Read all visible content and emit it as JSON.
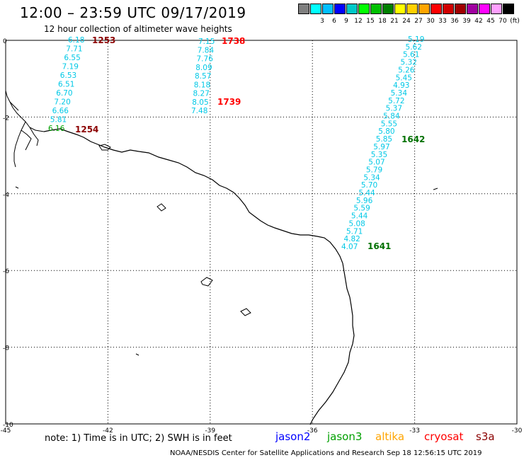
{
  "header": {
    "title": "12:00 – 23:59 UTC 09/17/2019",
    "subtitle": "12 hour collection of altimeter wave heights"
  },
  "legend": {
    "swatches": [
      {
        "color": "#7f7f7f",
        "label": ""
      },
      {
        "color": "#00ffff",
        "label": "3"
      },
      {
        "color": "#00bfff",
        "label": "6"
      },
      {
        "color": "#0000ff",
        "label": "9"
      },
      {
        "color": "#00c8c8",
        "label": "12"
      },
      {
        "color": "#00ff00",
        "label": "15"
      },
      {
        "color": "#00c000",
        "label": "18"
      },
      {
        "color": "#008000",
        "label": "21"
      },
      {
        "color": "#ffff00",
        "label": "24"
      },
      {
        "color": "#ffd000",
        "label": "27"
      },
      {
        "color": "#ffa500",
        "label": "30"
      },
      {
        "color": "#ff0000",
        "label": "33"
      },
      {
        "color": "#d00000",
        "label": "36"
      },
      {
        "color": "#a00000",
        "label": "39"
      },
      {
        "color": "#a000a0",
        "label": "42"
      },
      {
        "color": "#ff00ff",
        "label": "45"
      },
      {
        "color": "#ffa0ff",
        "label": "70"
      },
      {
        "color": "#000000",
        "label": "(ft)"
      }
    ]
  },
  "axes": {
    "x_ticks": [
      "-45",
      "-42",
      "-39",
      "-36",
      "-33",
      "-30"
    ],
    "y_ticks": [
      "0",
      "-2",
      "-4",
      "-6",
      "-8",
      "-10"
    ],
    "grid": true
  },
  "colors": {
    "cyan": "#00c8e6",
    "green_text": "#00a000",
    "dark_green": "#007000",
    "dark_red": "#8b0000",
    "red": "#ff0000",
    "coast": "#000000"
  },
  "tracks": [
    {
      "name": "track-1253",
      "time": "1253",
      "time_color": "#8b0000",
      "values": [
        "6.18",
        "7.71",
        "6.55",
        "7.19",
        "6.53",
        "6.51",
        "6.70",
        "7.20",
        "6.66",
        "5.81",
        "6.16"
      ],
      "time2": "1254",
      "time2_color": "#8b0000"
    },
    {
      "name": "track-1738",
      "time": "1738",
      "time_color": "#ff0000",
      "values": [
        "7.15",
        "7.84",
        "7.76",
        "8.09",
        "8.57",
        "8.18",
        "8.27",
        "8.05",
        "7.48"
      ],
      "time2": "1739",
      "time2_color": "#ff0000"
    },
    {
      "name": "track-1641",
      "time": "1642",
      "time_color": "#007000",
      "values": [
        "5.19",
        "5.62",
        "5.61",
        "5.32",
        "5.26",
        "5.45",
        "4.93",
        "5.34",
        "5.72",
        "5.37",
        "5.84",
        "5.55",
        "5.80",
        "5.85",
        "5.97",
        "5.35",
        "5.07",
        "5.79",
        "5.34",
        "5.70",
        "5.44",
        "5.96",
        "5.59",
        "5.44",
        "5.08",
        "5.71",
        "4.82",
        "4.07"
      ],
      "time2": "1641",
      "time2_color": "#007000"
    }
  ],
  "footer": {
    "note": "note:  1) Time is in UTC;  2) SWH is in feet",
    "satellites": [
      {
        "name": "jason2",
        "color": "#0000ff"
      },
      {
        "name": "jason3",
        "color": "#00a000"
      },
      {
        "name": "altika",
        "color": "#ffa500"
      },
      {
        "name": "cryosat",
        "color": "#ff0000"
      },
      {
        "name": "s3a",
        "color": "#8b0000"
      }
    ],
    "credit": "NOAA/NESDIS Center for Satellite Applications and Research    Sep 18 12:56:15 UTC 2019"
  }
}
